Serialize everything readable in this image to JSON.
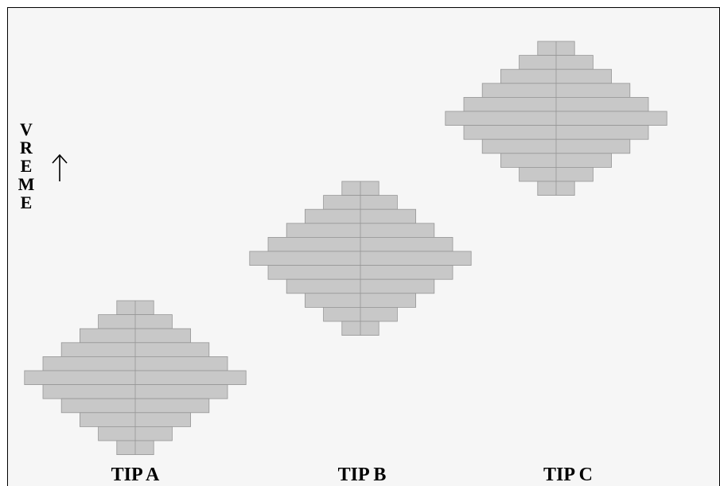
{
  "axis": {
    "letters": [
      "V",
      "R",
      "E",
      "M",
      "E"
    ],
    "arrow_icon": "up-arrow-icon"
  },
  "colors": {
    "bar_fill": "#c8c8c8",
    "bar_stroke": "#969696",
    "background": "#f6f6f6"
  },
  "chart_data": {
    "type": "diagram",
    "bar_widths_per_row": [
      2,
      4,
      6,
      8,
      10,
      12,
      10,
      8,
      6,
      4,
      2
    ],
    "groups": [
      {
        "label": "TIP A",
        "rows": 11
      },
      {
        "label": "TIP B",
        "rows": 11
      },
      {
        "label": "TIP C",
        "rows": 11
      }
    ]
  }
}
